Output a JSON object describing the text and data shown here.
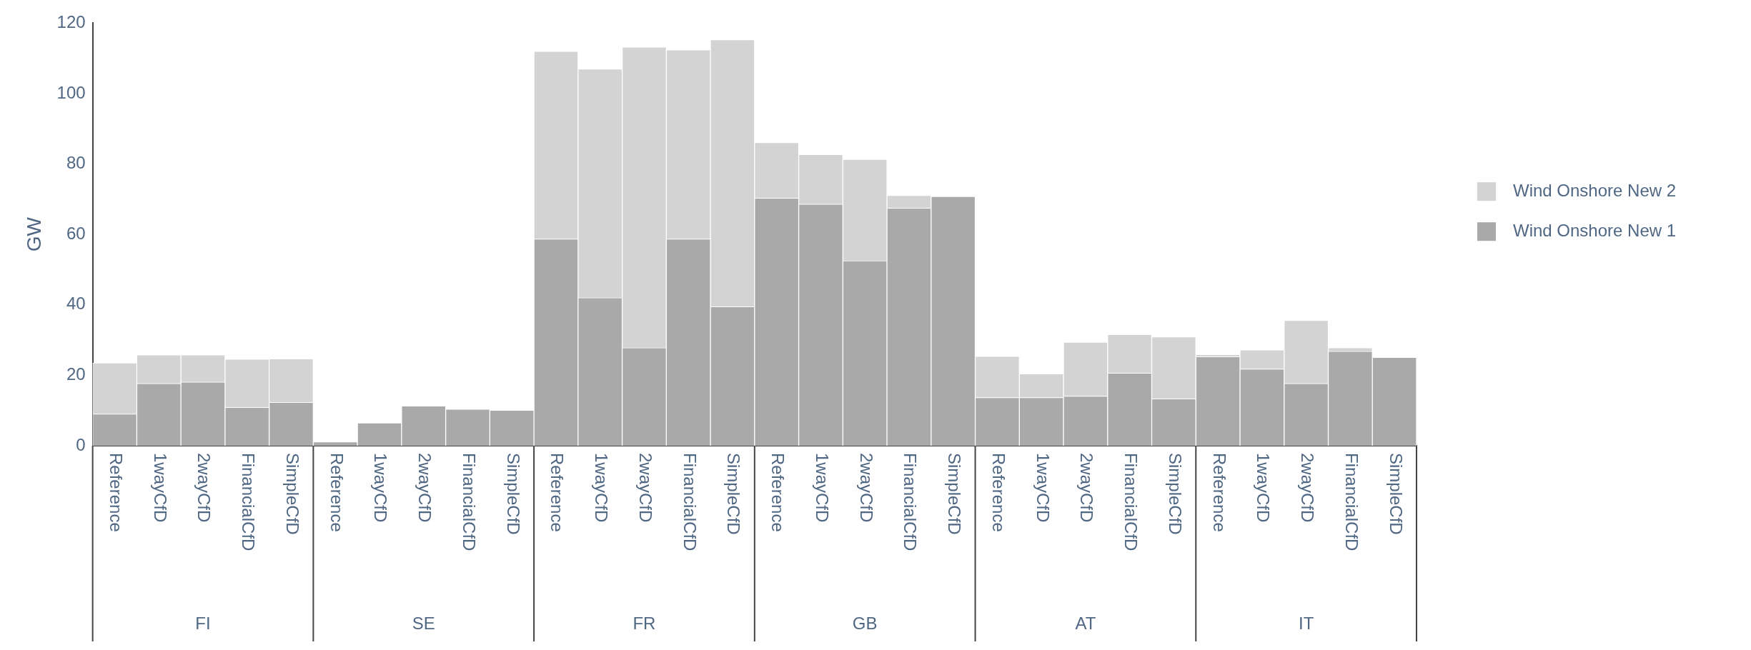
{
  "chart_data": {
    "type": "bar",
    "ylabel": "GW",
    "stacked": true,
    "legend": "right",
    "ylim": [
      0,
      120
    ],
    "yticks": [
      0,
      20,
      40,
      60,
      80,
      100,
      120
    ],
    "grid": false,
    "categories": [
      "Reference",
      "1wayCfD",
      "2wayCfD",
      "FinancialCfD",
      "SimpleCfD",
      "Reference",
      "1wayCfD",
      "2wayCfD",
      "FinancialCfD",
      "SimpleCfD",
      "Reference",
      "1wayCfD",
      "2wayCfD",
      "FinancialCfD",
      "SimpleCfD",
      "Reference",
      "1wayCfD",
      "2wayCfD",
      "FinancialCfD",
      "SimpleCfD",
      "Reference",
      "1wayCfD",
      "2wayCfD",
      "FinancialCfD",
      "SimpleCfD",
      "Reference",
      "1wayCfD",
      "2wayCfD",
      "FinancialCfD",
      "SimpleCfD"
    ],
    "annotations": [
      "FI",
      "SE",
      "FR",
      "GB",
      "AT",
      "IT"
    ],
    "series": [
      {
        "name": "Wind Onshore New 1",
        "color": "#a9a9a9",
        "values": [
          9.0,
          17.7,
          18.1,
          10.9,
          12.3,
          1.1,
          6.5,
          11.3,
          10.4,
          10.1,
          58.7,
          42.0,
          27.8,
          58.7,
          39.5,
          70.3,
          68.6,
          52.5,
          67.5,
          70.8,
          13.7,
          13.7,
          14.1,
          20.6,
          13.3,
          25.3,
          21.8,
          17.7,
          26.8,
          25.1
        ]
      },
      {
        "name": "Wind Onshore New 2",
        "color": "#d3d3d3",
        "values": [
          14.5,
          8.1,
          7.7,
          13.7,
          12.4,
          0,
          0,
          0,
          0,
          0,
          53.3,
          65.0,
          85.4,
          53.7,
          75.8,
          15.8,
          14.1,
          28.8,
          3.6,
          0,
          11.7,
          6.7,
          15.3,
          11.0,
          17.6,
          0.6,
          5.4,
          17.9,
          1.0,
          0
        ]
      }
    ]
  }
}
